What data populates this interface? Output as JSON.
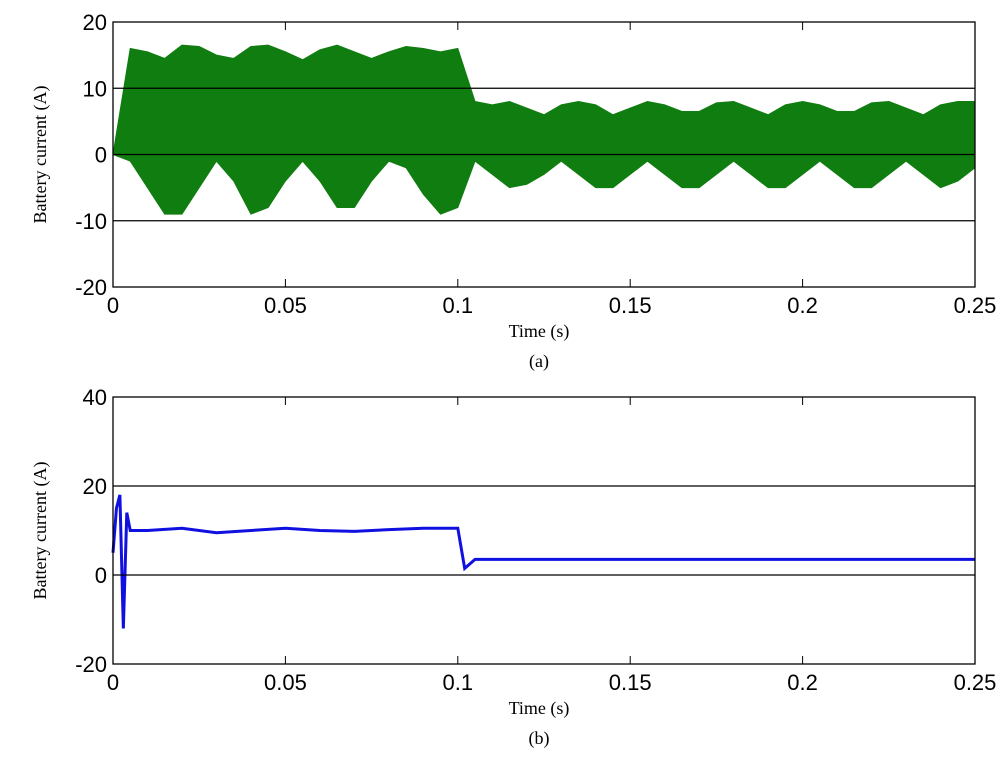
{
  "chart_data": [
    {
      "type": "area",
      "xlabel": "Time (s)",
      "ylabel": "Battery current (A)",
      "caption": "(a)",
      "x": [
        0,
        0.005,
        0.01,
        0.015,
        0.02,
        0.025,
        0.03,
        0.035,
        0.04,
        0.045,
        0.05,
        0.055,
        0.06,
        0.065,
        0.07,
        0.075,
        0.08,
        0.085,
        0.09,
        0.095,
        0.1,
        0.105,
        0.11,
        0.115,
        0.12,
        0.125,
        0.13,
        0.135,
        0.14,
        0.145,
        0.15,
        0.155,
        0.16,
        0.165,
        0.17,
        0.175,
        0.18,
        0.185,
        0.19,
        0.195,
        0.2,
        0.205,
        0.21,
        0.215,
        0.22,
        0.225,
        0.23,
        0.235,
        0.24,
        0.245,
        0.25
      ],
      "series": [
        {
          "color": "#107d10",
          "values": [
            0,
            16,
            15.5,
            14.5,
            16.5,
            16.3,
            15,
            14.5,
            16.3,
            16.5,
            15.5,
            14.3,
            15.8,
            16.5,
            15.5,
            14.5,
            15.5,
            16.3,
            16,
            15.5,
            16,
            8,
            7.5,
            8,
            7,
            6,
            7.5,
            8,
            7.5,
            6,
            7,
            8,
            7.5,
            6.5,
            6.5,
            7.8,
            8,
            7,
            6,
            7.5,
            8,
            7.5,
            6.5,
            6.5,
            7.8,
            8,
            7,
            6,
            7.5,
            8,
            8
          ]
        },
        {
          "color": "#107d10",
          "values": [
            0,
            -1,
            -5,
            -9,
            -9,
            -5,
            -1,
            -4,
            -9,
            -8,
            -4,
            -1,
            -4,
            -8,
            -8,
            -4,
            -1,
            -2,
            -6,
            -9,
            -8,
            -1,
            -3,
            -5,
            -4.5,
            -3,
            -1,
            -3,
            -5,
            -5,
            -3,
            -1,
            -3,
            -5,
            -5,
            -3,
            -1,
            -3,
            -5,
            -5,
            -3,
            -1,
            -3,
            -5,
            -5,
            -3,
            -1,
            -3,
            -5,
            -4,
            -2
          ]
        }
      ],
      "xlim": [
        0,
        0.25
      ],
      "xticks": [
        0,
        0.05,
        0.1,
        0.15,
        0.2,
        0.25
      ],
      "ylim": [
        -20,
        20
      ],
      "yticks": [
        -20,
        -10,
        0,
        10,
        20
      ],
      "grid": "y"
    },
    {
      "type": "line",
      "xlabel": "Time (s)",
      "ylabel": "Battery current (A)",
      "caption": "(b)",
      "x": [
        0,
        0.001,
        0.002,
        0.003,
        0.004,
        0.005,
        0.01,
        0.02,
        0.03,
        0.04,
        0.05,
        0.06,
        0.07,
        0.08,
        0.09,
        0.1,
        0.102,
        0.105,
        0.11,
        0.12,
        0.13,
        0.14,
        0.15,
        0.16,
        0.17,
        0.18,
        0.19,
        0.2,
        0.21,
        0.22,
        0.23,
        0.24,
        0.25
      ],
      "series": [
        {
          "color": "#1010e0",
          "values": [
            5,
            15,
            18,
            -12,
            14,
            10,
            10,
            10.5,
            9.5,
            10,
            10.5,
            10,
            9.8,
            10.2,
            10.5,
            10.5,
            1.5,
            3.5,
            3.5,
            3.5,
            3.5,
            3.5,
            3.5,
            3.5,
            3.5,
            3.5,
            3.5,
            3.5,
            3.5,
            3.5,
            3.5,
            3.5,
            3.5
          ]
        }
      ],
      "xlim": [
        0,
        0.25
      ],
      "xticks": [
        0,
        0.05,
        0.1,
        0.15,
        0.2,
        0.25
      ],
      "ylim": [
        -20,
        40
      ],
      "yticks": [
        -20,
        0,
        20,
        40
      ],
      "grid": "y"
    }
  ]
}
